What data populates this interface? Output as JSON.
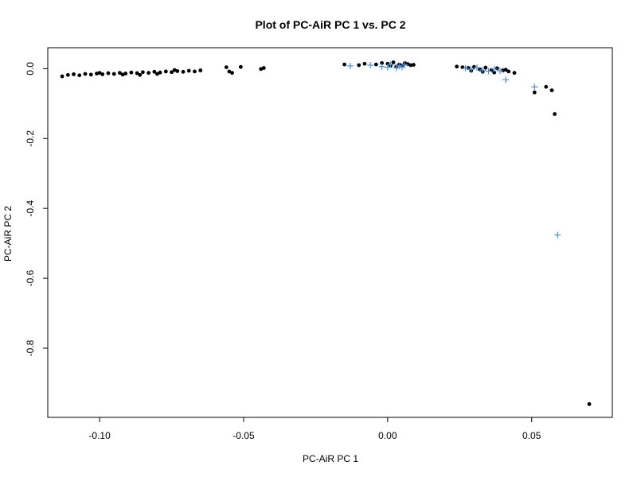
{
  "chart_data": {
    "type": "scatter",
    "title": "Plot of PC-AiR PC 1 vs. PC 2",
    "xlabel": "PC-AiR PC 1",
    "ylabel": "PC-AiR PC 2",
    "xlim": [
      -0.118,
      0.078
    ],
    "ylim": [
      -0.998,
      0.06
    ],
    "xticks": [
      -0.1,
      -0.05,
      0.0,
      0.05
    ],
    "xtick_labels": [
      "-0.10",
      "-0.05",
      "0.00",
      "0.05"
    ],
    "yticks": [
      0.0,
      -0.2,
      -0.4,
      -0.6,
      -0.8
    ],
    "ytick_labels": [
      "0.0",
      "-0.2",
      "-0.4",
      "-0.6",
      "-0.8"
    ],
    "grid": false,
    "legend": "none",
    "series": [
      {
        "marker": "filled-circle",
        "color": "#000000",
        "points": [
          [
            -0.113,
            -0.022
          ],
          [
            -0.111,
            -0.018
          ],
          [
            -0.109,
            -0.016
          ],
          [
            -0.107,
            -0.019
          ],
          [
            -0.105,
            -0.015
          ],
          [
            -0.103,
            -0.017
          ],
          [
            -0.101,
            -0.014
          ],
          [
            -0.099,
            -0.016
          ],
          [
            -0.097,
            -0.013
          ],
          [
            -0.095,
            -0.015
          ],
          [
            -0.093,
            -0.012
          ],
          [
            -0.091,
            -0.014
          ],
          [
            -0.089,
            -0.011
          ],
          [
            -0.087,
            -0.013
          ],
          [
            -0.085,
            -0.01
          ],
          [
            -0.083,
            -0.012
          ],
          [
            -0.081,
            -0.009
          ],
          [
            -0.079,
            -0.011
          ],
          [
            -0.077,
            -0.008
          ],
          [
            -0.075,
            -0.01
          ],
          [
            -0.073,
            -0.007
          ],
          [
            -0.071,
            -0.009
          ],
          [
            -0.069,
            -0.006
          ],
          [
            -0.067,
            -0.008
          ],
          [
            -0.065,
            -0.005
          ],
          [
            -0.1,
            -0.012
          ],
          [
            -0.092,
            -0.017
          ],
          [
            -0.086,
            -0.018
          ],
          [
            -0.08,
            -0.015
          ],
          [
            -0.074,
            -0.004
          ],
          [
            -0.056,
            0.004
          ],
          [
            -0.055,
            -0.008
          ],
          [
            -0.054,
            -0.012
          ],
          [
            -0.051,
            0.005
          ],
          [
            -0.044,
            -0.001
          ],
          [
            -0.043,
            0.002
          ],
          [
            -0.015,
            0.012
          ],
          [
            -0.01,
            0.01
          ],
          [
            -0.008,
            0.014
          ],
          [
            -0.004,
            0.012
          ],
          [
            -0.002,
            0.016
          ],
          [
            0.0,
            0.014
          ],
          [
            0.002,
            0.018
          ],
          [
            0.004,
            0.012
          ],
          [
            0.006,
            0.016
          ],
          [
            0.008,
            0.01
          ],
          [
            0.001,
            0.008
          ],
          [
            0.003,
            0.006
          ],
          [
            0.005,
            0.009
          ],
          [
            0.007,
            0.013
          ],
          [
            0.009,
            0.011
          ],
          [
            0.024,
            0.006
          ],
          [
            0.026,
            0.004
          ],
          [
            0.028,
            0.002
          ],
          [
            0.03,
            0.005
          ],
          [
            0.032,
            -0.002
          ],
          [
            0.034,
            0.003
          ],
          [
            0.036,
            -0.004
          ],
          [
            0.038,
            0.001
          ],
          [
            0.04,
            -0.005
          ],
          [
            0.042,
            -0.008
          ],
          [
            0.044,
            -0.012
          ],
          [
            0.029,
            -0.006
          ],
          [
            0.033,
            -0.009
          ],
          [
            0.037,
            -0.011
          ],
          [
            0.041,
            -0.003
          ],
          [
            0.051,
            -0.068
          ],
          [
            0.055,
            -0.052
          ],
          [
            0.057,
            -0.062
          ],
          [
            0.058,
            -0.13
          ],
          [
            0.07,
            -0.96
          ]
        ]
      },
      {
        "marker": "plus",
        "color": "#4a90e2",
        "points": [
          [
            -0.013,
            0.008
          ],
          [
            -0.006,
            0.01
          ],
          [
            -0.002,
            0.006
          ],
          [
            0.0,
            0.004
          ],
          [
            0.001,
            0.012
          ],
          [
            0.003,
            0.002
          ],
          [
            0.004,
            0.008
          ],
          [
            0.005,
            0.004
          ],
          [
            0.006,
            0.011
          ],
          [
            0.027,
            0.001
          ],
          [
            0.029,
            -0.002
          ],
          [
            0.031,
            0.003
          ],
          [
            0.033,
            -0.004
          ],
          [
            0.035,
            -0.007
          ],
          [
            0.037,
            -0.001
          ],
          [
            0.039,
            -0.006
          ],
          [
            0.041,
            -0.032
          ],
          [
            0.051,
            -0.052
          ],
          [
            0.059,
            -0.476
          ]
        ]
      }
    ]
  }
}
